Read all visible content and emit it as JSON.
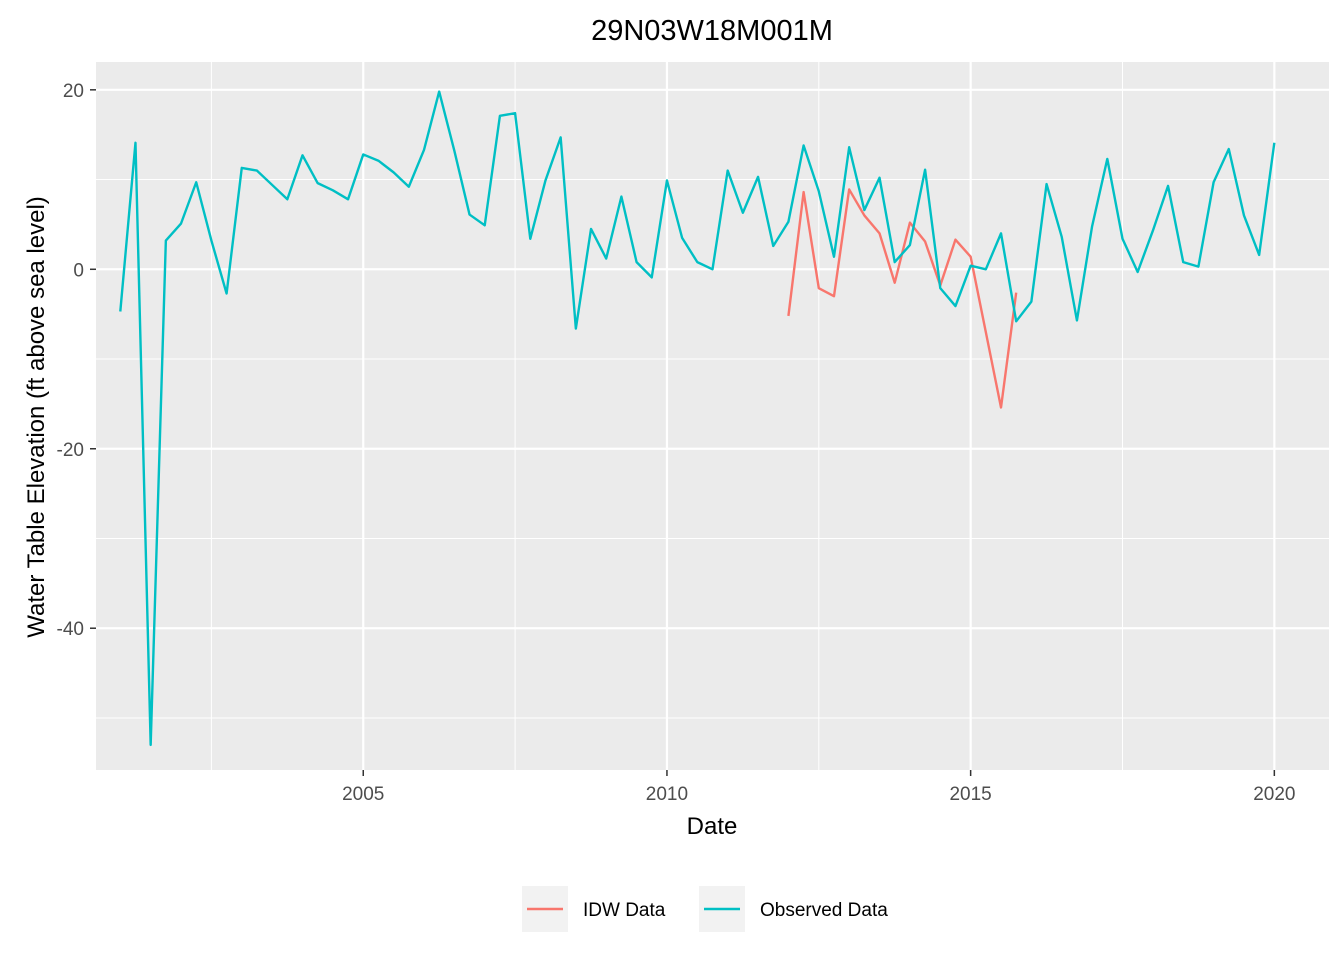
{
  "chart_data": {
    "type": "line",
    "title": "29N03W18M001M",
    "xlabel": "Date",
    "ylabel": "Water Table Elevation (ft above sea level)",
    "x_ticks": [
      "2005",
      "2010",
      "2015",
      "2020"
    ],
    "y_ticks": [
      -40,
      -20,
      0,
      20
    ],
    "xlim": [
      2000.6,
      2020.9
    ],
    "ylim": [
      -55.8,
      23.1
    ],
    "grid": true,
    "legend_position": "bottom",
    "series": [
      {
        "name": "IDW Data",
        "color": "#F8766D",
        "points": [
          [
            2012.0,
            -5.2
          ],
          [
            2012.25,
            8.6
          ],
          [
            2012.5,
            -2.1
          ],
          [
            2012.75,
            -3.0
          ],
          [
            2013.0,
            8.9
          ],
          [
            2013.25,
            6.0
          ],
          [
            2013.5,
            4.0
          ],
          [
            2013.75,
            -1.5
          ],
          [
            2014.0,
            5.2
          ],
          [
            2014.25,
            3.1
          ],
          [
            2014.5,
            -1.8
          ],
          [
            2014.75,
            3.3
          ],
          [
            2015.0,
            1.4
          ],
          [
            2015.5,
            -15.4
          ],
          [
            2015.75,
            -2.6
          ]
        ]
      },
      {
        "name": "Observed Data",
        "color": "#00BFC4",
        "points": [
          [
            2001.0,
            -4.7
          ],
          [
            2001.25,
            14.1
          ],
          [
            2001.5,
            -53.0
          ],
          [
            2001.75,
            3.2
          ],
          [
            2002.0,
            5.1
          ],
          [
            2002.25,
            9.7
          ],
          [
            2002.5,
            3.2
          ],
          [
            2002.75,
            -2.7
          ],
          [
            2003.0,
            11.3
          ],
          [
            2003.25,
            11.0
          ],
          [
            2003.5,
            9.4
          ],
          [
            2003.75,
            7.8
          ],
          [
            2004.0,
            12.7
          ],
          [
            2004.25,
            9.6
          ],
          [
            2004.5,
            8.8
          ],
          [
            2004.75,
            7.8
          ],
          [
            2005.0,
            12.8
          ],
          [
            2005.25,
            12.1
          ],
          [
            2005.5,
            10.8
          ],
          [
            2005.75,
            9.2
          ],
          [
            2006.0,
            13.3
          ],
          [
            2006.25,
            19.8
          ],
          [
            2006.5,
            13.2
          ],
          [
            2006.75,
            6.1
          ],
          [
            2007.0,
            4.9
          ],
          [
            2007.25,
            17.1
          ],
          [
            2007.5,
            17.4
          ],
          [
            2007.75,
            3.4
          ],
          [
            2008.0,
            9.9
          ],
          [
            2008.25,
            14.7
          ],
          [
            2008.5,
            -6.6
          ],
          [
            2008.75,
            4.5
          ],
          [
            2009.0,
            1.2
          ],
          [
            2009.25,
            8.1
          ],
          [
            2009.5,
            0.8
          ],
          [
            2009.75,
            -0.9
          ],
          [
            2010.0,
            9.9
          ],
          [
            2010.25,
            3.5
          ],
          [
            2010.5,
            0.8
          ],
          [
            2010.75,
            0.0
          ],
          [
            2011.0,
            11.0
          ],
          [
            2011.25,
            6.3
          ],
          [
            2011.5,
            10.3
          ],
          [
            2011.75,
            2.6
          ],
          [
            2012.0,
            5.3
          ],
          [
            2012.25,
            13.8
          ],
          [
            2012.5,
            8.7
          ],
          [
            2012.75,
            1.4
          ],
          [
            2013.0,
            13.6
          ],
          [
            2013.25,
            6.6
          ],
          [
            2013.5,
            10.2
          ],
          [
            2013.75,
            0.8
          ],
          [
            2014.0,
            2.7
          ],
          [
            2014.25,
            11.1
          ],
          [
            2014.5,
            -2.1
          ],
          [
            2014.75,
            -4.1
          ],
          [
            2015.0,
            0.4
          ],
          [
            2015.25,
            0.0
          ],
          [
            2015.5,
            4.0
          ],
          [
            2015.75,
            -5.8
          ],
          [
            2016.0,
            -3.6
          ],
          [
            2016.25,
            9.5
          ],
          [
            2016.5,
            3.6
          ],
          [
            2016.75,
            -5.7
          ],
          [
            2017.0,
            4.8
          ],
          [
            2017.25,
            12.3
          ],
          [
            2017.5,
            3.4
          ],
          [
            2017.75,
            -0.3
          ],
          [
            2018.0,
            4.3
          ],
          [
            2018.25,
            9.3
          ],
          [
            2018.5,
            0.8
          ],
          [
            2018.75,
            0.3
          ],
          [
            2019.0,
            9.7
          ],
          [
            2019.25,
            13.4
          ],
          [
            2019.5,
            6.0
          ],
          [
            2019.75,
            1.6
          ],
          [
            2020.0,
            14.1
          ]
        ]
      }
    ]
  }
}
